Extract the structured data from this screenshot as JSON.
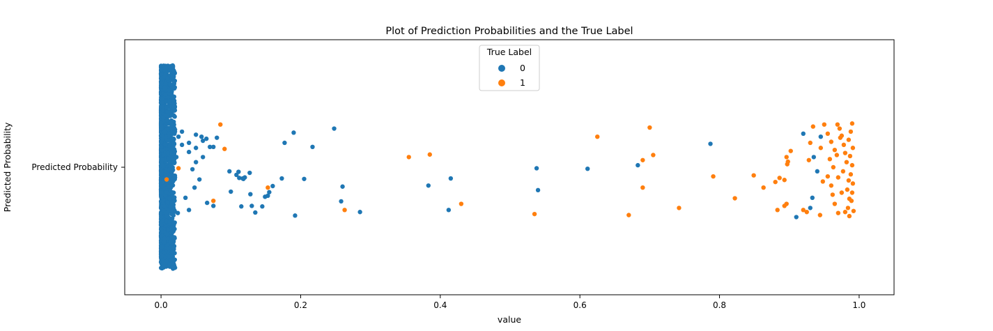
{
  "chart_data": {
    "type": "scatter",
    "title": "Plot of Prediction Probabilities and the True Label",
    "xlabel": "value",
    "ylabel": "Predicted Probability",
    "y_category": "Predicted Probability",
    "xlim": [
      -0.052,
      1.05
    ],
    "xticks": [
      0.0,
      0.2,
      0.4,
      0.6,
      0.8,
      1.0
    ],
    "xtick_labels": [
      "0.0",
      "0.2",
      "0.4",
      "0.6",
      "0.8",
      "1.0"
    ],
    "grid": false,
    "legend": {
      "title": "True Label",
      "placement": "top-center",
      "entries": [
        {
          "label": "0",
          "color": "#1f77b4"
        },
        {
          "label": "1",
          "color": "#ff7f0e"
        }
      ]
    },
    "series": [
      {
        "name": "0",
        "color": "#1f77b4",
        "points": [
          [
            0.248,
            0.38
          ],
          [
            0.19,
            0.34
          ],
          [
            0.177,
            0.24
          ],
          [
            0.217,
            0.2
          ],
          [
            0.415,
            -0.11
          ],
          [
            0.787,
            0.23
          ],
          [
            0.538,
            -0.01
          ],
          [
            0.611,
            -0.015
          ],
          [
            0.683,
            0.02
          ],
          [
            0.383,
            -0.18
          ],
          [
            0.54,
            -0.225
          ],
          [
            0.412,
            -0.42
          ],
          [
            0.285,
            -0.44
          ],
          [
            0.258,
            -0.335
          ],
          [
            0.26,
            -0.19
          ],
          [
            0.205,
            -0.115
          ],
          [
            0.173,
            -0.11
          ],
          [
            0.192,
            -0.475
          ],
          [
            0.135,
            -0.445
          ],
          [
            0.16,
            -0.185
          ],
          [
            0.153,
            -0.28
          ],
          [
            0.128,
            -0.265
          ],
          [
            0.112,
            -0.105
          ],
          [
            0.098,
            -0.04
          ],
          [
            0.1,
            -0.24
          ],
          [
            0.13,
            -0.38
          ],
          [
            0.115,
            -0.385
          ],
          [
            0.118,
            -0.115
          ],
          [
            0.108,
            -0.075
          ],
          [
            0.111,
            -0.045
          ],
          [
            0.117,
            -0.11
          ],
          [
            0.12,
            -0.1
          ],
          [
            0.127,
            -0.055
          ],
          [
            0.145,
            -0.385
          ],
          [
            0.149,
            -0.29
          ],
          [
            0.155,
            -0.245
          ],
          [
            0.065,
            0.28
          ],
          [
            0.058,
            0.3
          ],
          [
            0.05,
            0.32
          ],
          [
            0.08,
            0.29
          ],
          [
            0.07,
            0.2
          ],
          [
            0.075,
            0.2
          ],
          [
            0.066,
            -0.35
          ],
          [
            0.075,
            -0.38
          ],
          [
            0.935,
            0.1
          ],
          [
            0.94,
            -0.04
          ],
          [
            0.933,
            -0.3
          ],
          [
            0.93,
            -0.4
          ],
          [
            0.91,
            -0.49
          ],
          [
            0.92,
            0.33
          ],
          [
            0.945,
            0.3
          ],
          [
            0.06,
            0.26
          ],
          [
            0.04,
            0.24
          ],
          [
            0.03,
            0.22
          ],
          [
            0.05,
            0.19
          ],
          [
            0.04,
            0.15
          ],
          [
            0.06,
            0.1
          ],
          [
            0.05,
            0.05
          ],
          [
            0.045,
            -0.02
          ],
          [
            0.055,
            -0.12
          ],
          [
            0.048,
            -0.2
          ],
          [
            0.035,
            -0.3
          ],
          [
            0.04,
            -0.42
          ],
          [
            0.03,
            0.35
          ],
          [
            0.025,
            0.3
          ],
          [
            0.02,
            0.37
          ],
          [
            0.018,
            0.28
          ],
          [
            0.016,
            0.18
          ],
          [
            0.022,
            0.1
          ],
          [
            0.02,
            -0.1
          ],
          [
            0.018,
            -0.25
          ],
          [
            0.016,
            -0.35
          ],
          [
            0.024,
            -0.45
          ]
        ]
      },
      {
        "name": "1",
        "color": "#ff7f0e",
        "points": [
          [
            0.085,
            0.42
          ],
          [
            0.091,
            0.18
          ],
          [
            0.025,
            -0.01
          ],
          [
            0.008,
            -0.12
          ],
          [
            0.075,
            -0.33
          ],
          [
            0.153,
            -0.2
          ],
          [
            0.263,
            -0.42
          ],
          [
            0.43,
            -0.36
          ],
          [
            0.355,
            0.1
          ],
          [
            0.385,
            0.125
          ],
          [
            0.625,
            0.3
          ],
          [
            0.7,
            0.39
          ],
          [
            0.705,
            0.12
          ],
          [
            0.69,
            0.07
          ],
          [
            0.69,
            -0.2
          ],
          [
            0.535,
            -0.46
          ],
          [
            0.67,
            -0.47
          ],
          [
            0.742,
            -0.4
          ],
          [
            0.791,
            -0.09
          ],
          [
            0.822,
            -0.305
          ],
          [
            0.849,
            -0.08
          ],
          [
            0.863,
            -0.2
          ],
          [
            0.88,
            -0.145
          ],
          [
            0.886,
            -0.105
          ],
          [
            0.893,
            -0.125
          ],
          [
            0.897,
            0.03
          ],
          [
            0.898,
            0.055
          ],
          [
            0.896,
            0.1
          ],
          [
            0.902,
            0.16
          ],
          [
            0.893,
            -0.38
          ],
          [
            0.896,
            -0.36
          ],
          [
            0.883,
            -0.42
          ],
          [
            0.934,
            0.4
          ],
          [
            0.93,
            0.24
          ],
          [
            0.928,
            0.07
          ],
          [
            0.92,
            -0.42
          ],
          [
            0.925,
            -0.44
          ],
          [
            0.95,
            0.42
          ],
          [
            0.955,
            0.33
          ],
          [
            0.96,
            0.25
          ],
          [
            0.965,
            0.17
          ],
          [
            0.958,
            0.08
          ],
          [
            0.963,
            0.0
          ],
          [
            0.955,
            -0.09
          ],
          [
            0.96,
            -0.18
          ],
          [
            0.962,
            -0.27
          ],
          [
            0.965,
            -0.36
          ],
          [
            0.97,
            -0.45
          ],
          [
            0.972,
            0.38
          ],
          [
            0.975,
            0.31
          ],
          [
            0.978,
            0.22
          ],
          [
            0.98,
            0.14
          ],
          [
            0.982,
            0.05
          ],
          [
            0.977,
            -0.04
          ],
          [
            0.985,
            -0.13
          ],
          [
            0.983,
            -0.22
          ],
          [
            0.986,
            -0.31
          ],
          [
            0.984,
            -0.4
          ],
          [
            0.99,
            0.43
          ],
          [
            0.988,
            0.35
          ],
          [
            0.985,
            0.27
          ],
          [
            0.991,
            0.19
          ],
          [
            0.987,
            0.11
          ],
          [
            0.99,
            0.02
          ],
          [
            0.988,
            -0.07
          ],
          [
            0.991,
            -0.16
          ],
          [
            0.99,
            -0.25
          ],
          [
            0.989,
            -0.33
          ],
          [
            0.992,
            -0.43
          ],
          [
            0.986,
            -0.48
          ],
          [
            0.975,
            -0.25
          ],
          [
            0.97,
            -0.1
          ],
          [
            0.968,
            0.12
          ],
          [
            0.973,
            0.29
          ],
          [
            0.969,
            0.42
          ],
          [
            0.945,
            0.19
          ],
          [
            0.948,
            -0.14
          ],
          [
            0.944,
            -0.47
          ],
          [
            0.98,
            -0.44
          ]
        ]
      }
    ]
  }
}
